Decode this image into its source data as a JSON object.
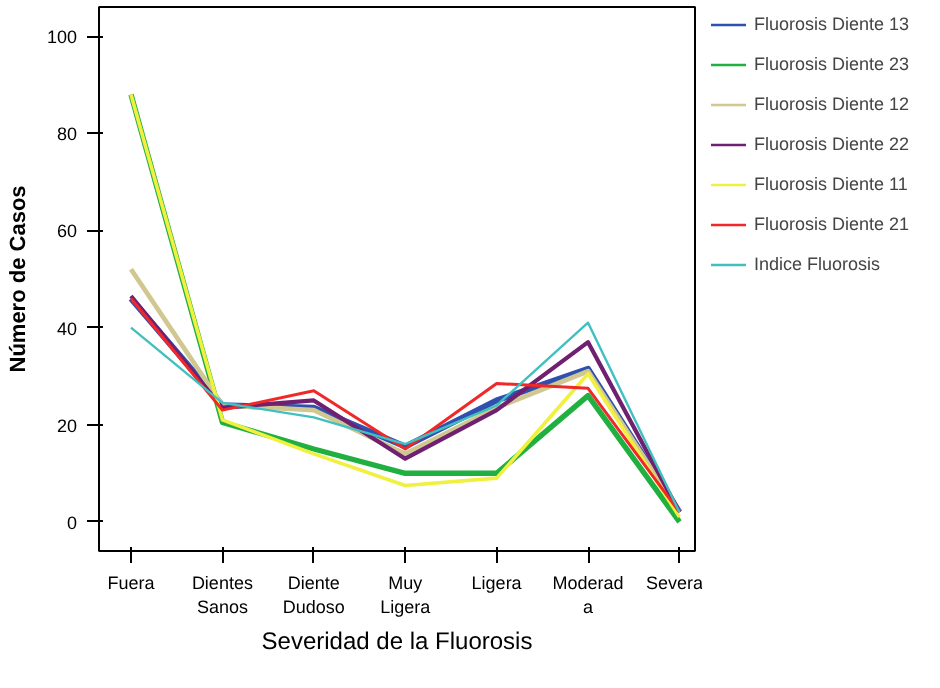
{
  "chart_data": {
    "type": "line",
    "xlabel": "Severidad de la Fluorosis",
    "ylabel": "Número de Casos",
    "categories": [
      "Fuera",
      "Dientes Sanos",
      "Diente Dudoso",
      "Muy Ligera",
      "Ligera",
      "Moderada",
      "Severa"
    ],
    "ylim": [
      -6,
      106
    ],
    "yticks": [
      0,
      20,
      40,
      60,
      80,
      100
    ],
    "grid": false,
    "legend": "right",
    "marker": "none",
    "line_style": "solid",
    "series": [
      {
        "name": "Fluorosis Diente 13",
        "color": "#3050b0",
        "values": [
          46,
          24,
          23.5,
          15.5,
          25,
          31.5,
          2
        ]
      },
      {
        "name": "Fluorosis Diente 23",
        "color": "#20b040",
        "values": [
          88,
          20.5,
          15,
          10,
          10,
          26,
          0
        ]
      },
      {
        "name": "Fluorosis Diente 12",
        "color": "#d0c890",
        "values": [
          52,
          24,
          23,
          14,
          23.5,
          31,
          2
        ]
      },
      {
        "name": "Fluorosis Diente 22",
        "color": "#702070",
        "values": [
          46.5,
          23.5,
          25,
          13,
          23,
          37,
          2
        ]
      },
      {
        "name": "Fluorosis Diente 11",
        "color": "#f0f040",
        "values": [
          88,
          21,
          14,
          7.5,
          9,
          30.5,
          1
        ]
      },
      {
        "name": "Fluorosis Diente 21",
        "color": "#f02828",
        "values": [
          46,
          23,
          27,
          15,
          28.5,
          27.5,
          2
        ]
      },
      {
        "name": "Indice Fluorosis",
        "color": "#40c0c0",
        "values": [
          40,
          24.5,
          21.5,
          16,
          24,
          41,
          2
        ]
      }
    ]
  }
}
